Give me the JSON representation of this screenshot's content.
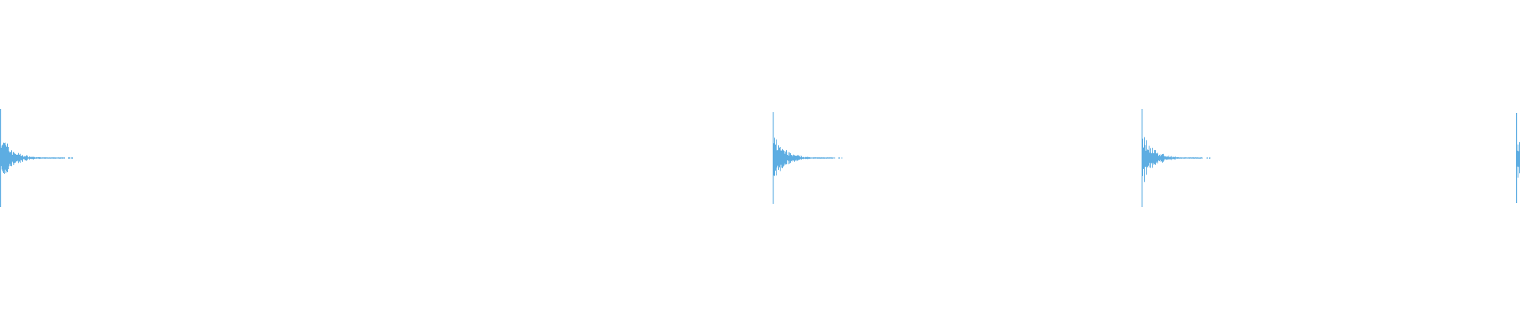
{
  "waveform": {
    "color": "#5dade2",
    "background": "#ffffff",
    "burst_count": 4
  }
}
